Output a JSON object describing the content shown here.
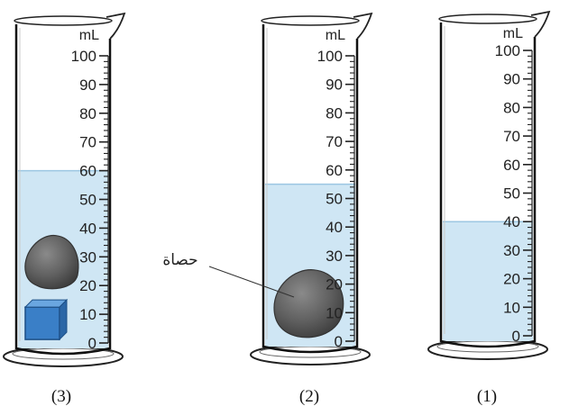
{
  "unit": "mL",
  "scale": {
    "min": 0,
    "max": 100,
    "label_step": 10
  },
  "water_color": "#cfe6f4",
  "cylinders": [
    {
      "id": "3",
      "caption": "(3)",
      "water_level_ml": 60,
      "objects": [
        "stone",
        "blue-cube"
      ]
    },
    {
      "id": "2",
      "caption": "(2)",
      "water_level_ml": 55,
      "objects": [
        "stone"
      ]
    },
    {
      "id": "1",
      "caption": "(1)",
      "water_level_ml": 40,
      "objects": []
    }
  ],
  "stone_label": "حصاة",
  "tick_labels": [
    "0",
    "10",
    "20",
    "30",
    "40",
    "50",
    "60",
    "70",
    "80",
    "90",
    "100"
  ]
}
